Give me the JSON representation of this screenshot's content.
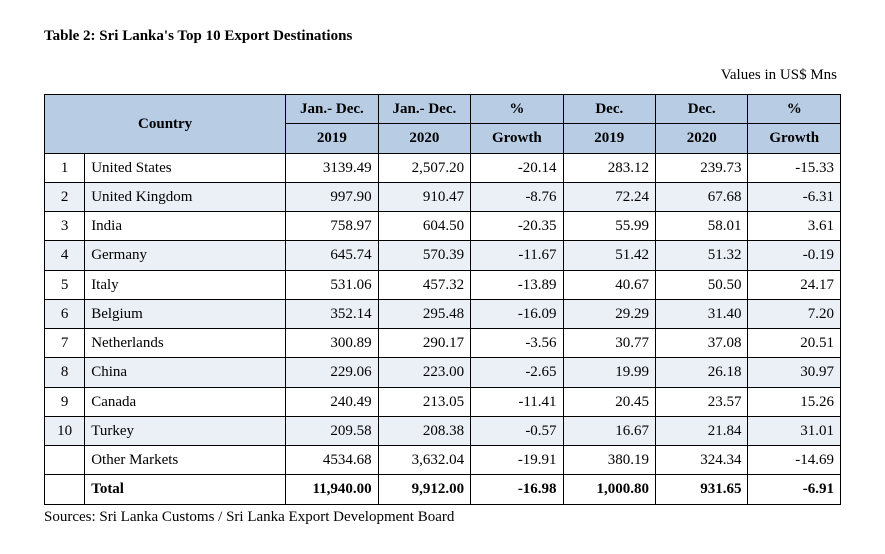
{
  "title": "Table 2: Sri Lanka's Top 10 Export Destinations",
  "units": "Values in US$ Mns",
  "source": "Sources:  Sri Lanka Customs / Sri Lanka Export Development Board",
  "columns": {
    "country": "Country",
    "jd2019_a": "Jan.- Dec.",
    "jd2019_b": "2019",
    "jd2020_a": "Jan.- Dec.",
    "jd2020_b": "2020",
    "g1_a": "%",
    "g1_b": "Growth",
    "d2019_a": "Dec.",
    "d2019_b": "2019",
    "d2020_a": "Dec.",
    "d2020_b": "2020",
    "g2_a": "%",
    "g2_b": "Growth"
  },
  "rows": [
    {
      "rank": "1",
      "country": "United States",
      "jd2019": "3139.49",
      "jd2020": "2,507.20",
      "g1": "-20.14",
      "d2019": "283.12",
      "d2020": "239.73",
      "g2": "-15.33"
    },
    {
      "rank": "2",
      "country": "United Kingdom",
      "jd2019": "997.90",
      "jd2020": "910.47",
      "g1": "-8.76",
      "d2019": "72.24",
      "d2020": "67.68",
      "g2": "-6.31"
    },
    {
      "rank": "3",
      "country": "India",
      "jd2019": "758.97",
      "jd2020": "604.50",
      "g1": "-20.35",
      "d2019": "55.99",
      "d2020": "58.01",
      "g2": "3.61"
    },
    {
      "rank": "4",
      "country": "Germany",
      "jd2019": "645.74",
      "jd2020": "570.39",
      "g1": "-11.67",
      "d2019": "51.42",
      "d2020": "51.32",
      "g2": "-0.19"
    },
    {
      "rank": "5",
      "country": "Italy",
      "jd2019": "531.06",
      "jd2020": "457.32",
      "g1": "-13.89",
      "d2019": "40.67",
      "d2020": "50.50",
      "g2": "24.17"
    },
    {
      "rank": "6",
      "country": "Belgium",
      "jd2019": "352.14",
      "jd2020": "295.48",
      "g1": "-16.09",
      "d2019": "29.29",
      "d2020": "31.40",
      "g2": "7.20"
    },
    {
      "rank": "7",
      "country": "Netherlands",
      "jd2019": "300.89",
      "jd2020": "290.17",
      "g1": "-3.56",
      "d2019": "30.77",
      "d2020": "37.08",
      "g2": "20.51"
    },
    {
      "rank": "8",
      "country": "China",
      "jd2019": "229.06",
      "jd2020": "223.00",
      "g1": "-2.65",
      "d2019": "19.99",
      "d2020": "26.18",
      "g2": "30.97"
    },
    {
      "rank": "9",
      "country": "Canada",
      "jd2019": "240.49",
      "jd2020": "213.05",
      "g1": "-11.41",
      "d2019": "20.45",
      "d2020": "23.57",
      "g2": "15.26"
    },
    {
      "rank": "10",
      "country": "Turkey",
      "jd2019": "209.58",
      "jd2020": "208.38",
      "g1": "-0.57",
      "d2019": "16.67",
      "d2020": "21.84",
      "g2": "31.01"
    },
    {
      "rank": "",
      "country": "Other Markets",
      "jd2019": "4534.68",
      "jd2020": "3,632.04",
      "g1": "-19.91",
      "d2019": "380.19",
      "d2020": "324.34",
      "g2": "-14.69"
    }
  ],
  "total": {
    "rank": "",
    "country": "Total",
    "jd2019": "11,940.00",
    "jd2020": "9,912.00",
    "g1": "-16.98",
    "d2019": "1,000.80",
    "d2020": "931.65",
    "g2": "-6.91"
  },
  "styling": {
    "header_bg": "#b8cce4",
    "zebra_bg": "#ebf0f7",
    "border_color": "#000000",
    "font_family": "Times New Roman",
    "base_fontsize_pt": 11
  }
}
